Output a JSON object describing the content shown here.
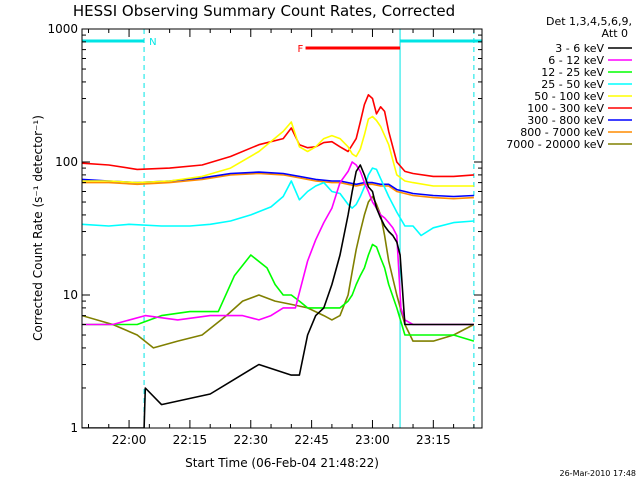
{
  "chart_data": {
    "type": "line",
    "title": "HESSI Observing Summary Count Rates, Corrected",
    "xlabel": "Start Time (06-Feb-04 21:48:22)",
    "ylabel": "Corrected Count Rate (s⁻¹ detector⁻¹)",
    "footer": "26-Mar-2010 17:48",
    "x_ticks": [
      "22:00",
      "22:15",
      "22:30",
      "22:45",
      "23:00",
      "23:15"
    ],
    "x_tick_minutes": [
      720,
      735,
      750,
      765,
      780,
      795
    ],
    "xlim": [
      708.4,
      807
    ],
    "y_ticks": [
      "1",
      "10",
      "100",
      "1000"
    ],
    "ylim": [
      1,
      1000
    ],
    "y_scale": "log",
    "legend_header": [
      "Det 1,3,4,5,6,9,",
      "Att 0"
    ],
    "legend_position": "right",
    "annotations": [
      {
        "label": "N",
        "color": "#00e5e5",
        "kind": "night",
        "x0": 708.4,
        "x1": 723.7
      },
      {
        "label": "",
        "color": "#00e5e5",
        "kind": "night",
        "x0": 786.8,
        "x1": 807
      },
      {
        "label": "F",
        "color": "#ff0000",
        "kind": "flare",
        "x0": 763.5,
        "x1": 786.8
      }
    ],
    "vlines": [
      {
        "x": 723.7,
        "color": "#00e5e5",
        "style": "dashed"
      },
      {
        "x": 786.8,
        "color": "#00e5e5",
        "style": "solid"
      },
      {
        "x": 805.0,
        "color": "#00e5e5",
        "style": "dashed"
      }
    ],
    "series": [
      {
        "name": "3 - 6 keV",
        "color": "#000000",
        "x": [
          708.4,
          723.7,
          724,
          728,
          740,
          752,
          760,
          762,
          764,
          766,
          768,
          770,
          772,
          774,
          775,
          776,
          777,
          778,
          779,
          780,
          781,
          782,
          783,
          784,
          785,
          786,
          786.8,
          788,
          790,
          792,
          795,
          800,
          805
        ],
        "y": [
          1,
          1,
          2,
          1.5,
          1.8,
          3,
          2.5,
          2.5,
          5,
          7,
          8,
          12,
          20,
          40,
          60,
          85,
          95,
          80,
          65,
          60,
          45,
          38,
          33,
          30,
          28,
          25,
          20,
          6,
          6,
          6,
          6,
          6,
          6
        ]
      },
      {
        "name": "6 - 12 keV",
        "color": "#ff00ff",
        "x": [
          708.4,
          716,
          724,
          732,
          740,
          748,
          752,
          755,
          758,
          761,
          764,
          766,
          768,
          770,
          772,
          774,
          775,
          776,
          777,
          778,
          779,
          780,
          781,
          782,
          783,
          784,
          785,
          786,
          787,
          788,
          790,
          795,
          800,
          805
        ],
        "y": [
          6,
          6,
          7,
          6.5,
          7,
          7,
          6.5,
          7,
          8,
          8,
          18,
          26,
          35,
          45,
          70,
          85,
          100,
          95,
          85,
          70,
          60,
          50,
          45,
          40,
          38,
          35,
          32,
          28,
          8,
          6.5,
          6,
          6,
          6,
          6
        ]
      },
      {
        "name": "12 - 25 keV",
        "color": "#00ff00",
        "x": [
          708.4,
          716,
          722,
          728,
          735,
          742,
          746,
          750,
          754,
          756,
          758,
          760,
          762,
          764,
          766,
          768,
          770,
          772,
          774,
          775,
          776,
          777,
          778,
          779,
          780,
          781,
          782,
          783,
          784,
          786,
          788,
          790,
          795,
          800,
          805
        ],
        "y": [
          6,
          6,
          6,
          7,
          7.5,
          7.5,
          14,
          20,
          16,
          12,
          10,
          10,
          9,
          8,
          8,
          8,
          8,
          8,
          9,
          10,
          12,
          14,
          16,
          20,
          24,
          23,
          19,
          16,
          12,
          8,
          5,
          5,
          5,
          5,
          4.5
        ]
      },
      {
        "name": "25 - 50 keV",
        "color": "#00ffff",
        "x": [
          708.4,
          715,
          720,
          728,
          735,
          740,
          745,
          750,
          755,
          758,
          760,
          762,
          764,
          766,
          768,
          770,
          772,
          774,
          775,
          776,
          777,
          778,
          779,
          780,
          781,
          782,
          784,
          786,
          788,
          790,
          792,
          795,
          800,
          805
        ],
        "y": [
          34,
          33,
          34,
          33,
          33,
          34,
          36,
          40,
          46,
          55,
          72,
          52,
          60,
          66,
          70,
          60,
          58,
          48,
          45,
          48,
          55,
          65,
          80,
          90,
          88,
          75,
          55,
          42,
          33,
          33,
          28,
          32,
          35,
          36
        ]
      },
      {
        "name": "50 - 100 keV",
        "color": "#ffff00",
        "x": [
          708.4,
          715,
          722,
          730,
          738,
          745,
          752,
          758,
          760,
          762,
          764,
          766,
          768,
          770,
          772,
          774,
          775,
          776,
          777,
          778,
          779,
          780,
          781,
          782,
          784,
          786,
          788,
          790,
          795,
          800,
          805
        ],
        "y": [
          72,
          72,
          70,
          72,
          78,
          90,
          120,
          170,
          200,
          130,
          120,
          130,
          150,
          158,
          150,
          130,
          115,
          110,
          125,
          160,
          210,
          220,
          205,
          185,
          135,
          80,
          72,
          70,
          66,
          66,
          66
        ]
      },
      {
        "name": "100 - 300 keV",
        "color": "#ff0000",
        "x": [
          708.4,
          715,
          722,
          730,
          738,
          745,
          752,
          758,
          760,
          762,
          764,
          766,
          768,
          770,
          772,
          774,
          776,
          777,
          778,
          779,
          780,
          781,
          782,
          783,
          784,
          786,
          788,
          790,
          795,
          800,
          805
        ],
        "y": [
          98,
          95,
          88,
          90,
          95,
          110,
          135,
          150,
          180,
          135,
          128,
          130,
          140,
          142,
          130,
          120,
          150,
          200,
          270,
          320,
          300,
          230,
          260,
          240,
          170,
          100,
          85,
          82,
          78,
          78,
          80
        ]
      },
      {
        "name": "300 - 800 keV",
        "color": "#0000ff",
        "x": [
          708.4,
          715,
          722,
          730,
          738,
          745,
          752,
          758,
          762,
          766,
          770,
          772,
          774,
          776,
          778,
          780,
          782,
          784,
          786,
          788,
          790,
          795,
          800,
          805
        ],
        "y": [
          74,
          72,
          70,
          72,
          76,
          82,
          84,
          82,
          78,
          74,
          72,
          72,
          70,
          68,
          70,
          70,
          68,
          68,
          62,
          60,
          58,
          56,
          55,
          56
        ]
      },
      {
        "name": "800 - 7000 keV",
        "color": "#ff8c00",
        "x": [
          708.4,
          715,
          722,
          730,
          738,
          745,
          752,
          758,
          762,
          766,
          770,
          772,
          774,
          776,
          778,
          780,
          782,
          784,
          786,
          788,
          790,
          795,
          800,
          805
        ],
        "y": [
          70,
          70,
          68,
          70,
          74,
          80,
          82,
          80,
          76,
          72,
          70,
          70,
          68,
          66,
          68,
          68,
          66,
          66,
          60,
          58,
          56,
          54,
          53,
          54
        ]
      },
      {
        "name": "7000 - 20000 keV",
        "color": "#808000",
        "x": [
          708.4,
          716,
          722,
          726,
          732,
          738,
          744,
          748,
          752,
          756,
          760,
          764,
          768,
          770,
          772,
          774,
          775,
          776,
          777,
          778,
          779,
          780,
          781,
          782,
          783,
          784,
          786,
          788,
          790,
          795,
          800,
          805
        ],
        "y": [
          7,
          6,
          5,
          4,
          4.5,
          5,
          7,
          9,
          10,
          9,
          8.5,
          8,
          7,
          6.5,
          7,
          10,
          15,
          22,
          30,
          40,
          50,
          55,
          48,
          40,
          28,
          18,
          10,
          6,
          4.5,
          4.5,
          5,
          6
        ]
      }
    ]
  }
}
